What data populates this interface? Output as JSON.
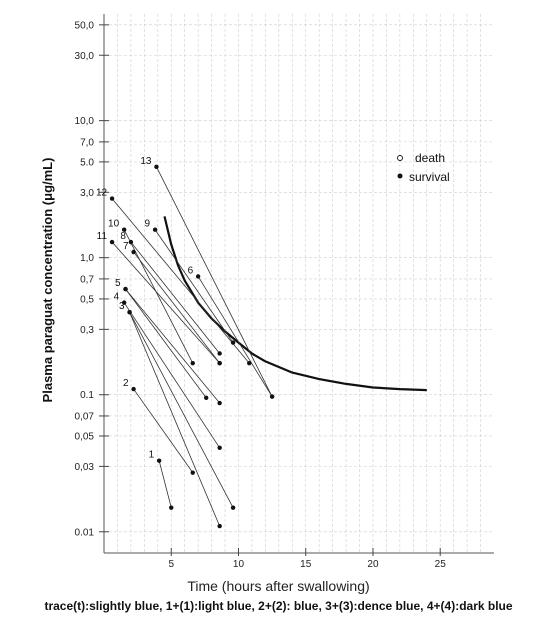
{
  "chart_data": {
    "type": "scatter",
    "xlabel": "Time (hours after swallowing)",
    "ylabel": "Plasma paraguat concentration  (μg/mL)",
    "caption": "trace(t):slightly blue, 1+(1):light blue, 2+(2): blue, 3+(3):dence blue, 4+(4):dark blue",
    "x_scale": "linear",
    "y_scale": "log",
    "xlim": [
      0,
      29
    ],
    "ylim": [
      0.007,
      60
    ],
    "grid": true,
    "x_ticks": [
      {
        "value": 5,
        "label": "5"
      },
      {
        "value": 10,
        "label": "10"
      },
      {
        "value": 15,
        "label": "15"
      },
      {
        "value": 20,
        "label": "20"
      },
      {
        "value": 25,
        "label": "25"
      }
    ],
    "y_ticks": [
      {
        "value": 50,
        "label": "50,0"
      },
      {
        "value": 30,
        "label": "30,0"
      },
      {
        "value": 10,
        "label": "10,0"
      },
      {
        "value": 7,
        "label": "7,0"
      },
      {
        "value": 5,
        "label": "5.0"
      },
      {
        "value": 3,
        "label": "3,0"
      },
      {
        "value": 1,
        "label": "1,0"
      },
      {
        "value": 0.7,
        "label": "0,7"
      },
      {
        "value": 0.5,
        "label": "0,5"
      },
      {
        "value": 0.3,
        "label": "0,3"
      },
      {
        "value": 0.1,
        "label": "0.1"
      },
      {
        "value": 0.07,
        "label": "0,07"
      },
      {
        "value": 0.05,
        "label": "0,05"
      },
      {
        "value": 0.03,
        "label": "0,03"
      },
      {
        "value": 0.01,
        "label": "0.01"
      }
    ],
    "legend": {
      "placement": "top-right",
      "entries": [
        {
          "symbol": "open",
          "label": "death"
        },
        {
          "symbol": "filled",
          "label": "survival"
        }
      ]
    },
    "reference_curve": {
      "x": [
        4.5,
        5,
        5.5,
        6,
        7,
        8,
        9,
        10,
        11,
        12,
        14,
        16,
        18,
        20,
        22,
        24
      ],
      "y": [
        2.0,
        1.25,
        0.88,
        0.68,
        0.47,
        0.36,
        0.29,
        0.24,
        0.2,
        0.175,
        0.145,
        0.13,
        0.12,
        0.113,
        0.11,
        0.108
      ]
    },
    "cases": [
      {
        "label": "1",
        "points": [
          [
            4.1,
            0.033
          ],
          [
            5.0,
            0.015
          ]
        ]
      },
      {
        "label": "2",
        "points": [
          [
            2.2,
            0.11
          ],
          [
            6.6,
            0.027
          ]
        ]
      },
      {
        "label": "3",
        "points": [
          [
            1.9,
            0.4
          ],
          [
            9.6,
            0.015
          ]
        ]
      },
      {
        "label": "3",
        "points": [
          [
            1.9,
            0.4
          ],
          [
            8.6,
            0.011
          ]
        ]
      },
      {
        "label": "4",
        "points": [
          [
            1.5,
            0.47
          ],
          [
            8.6,
            0.041
          ]
        ]
      },
      {
        "label": "5",
        "points": [
          [
            1.6,
            0.59
          ],
          [
            8.6,
            0.087
          ]
        ]
      },
      {
        "label": "5",
        "points": [
          [
            1.6,
            0.59
          ],
          [
            7.6,
            0.095
          ]
        ]
      },
      {
        "label": "6",
        "points": [
          [
            7.0,
            0.73
          ],
          [
            12.5,
            0.097
          ]
        ]
      },
      {
        "label": "7",
        "points": [
          [
            2.2,
            1.1
          ],
          [
            8.6,
            0.17
          ]
        ]
      },
      {
        "label": "8",
        "points": [
          [
            2.0,
            1.3
          ],
          [
            8.6,
            0.2
          ]
        ]
      },
      {
        "label": "9",
        "points": [
          [
            3.8,
            1.6
          ],
          [
            9.6,
            0.24
          ]
        ]
      },
      {
        "label": "10",
        "points": [
          [
            1.5,
            1.6
          ],
          [
            6.6,
            0.17
          ]
        ]
      },
      {
        "label": "11",
        "points": [
          [
            0.6,
            1.3
          ],
          [
            8.6,
            0.17
          ]
        ]
      },
      {
        "label": "12",
        "points": [
          [
            0.6,
            2.7
          ],
          [
            10.8,
            0.17
          ]
        ]
      },
      {
        "label": "13",
        "points": [
          [
            3.9,
            4.6
          ],
          [
            12.5,
            0.097
          ]
        ]
      }
    ]
  }
}
